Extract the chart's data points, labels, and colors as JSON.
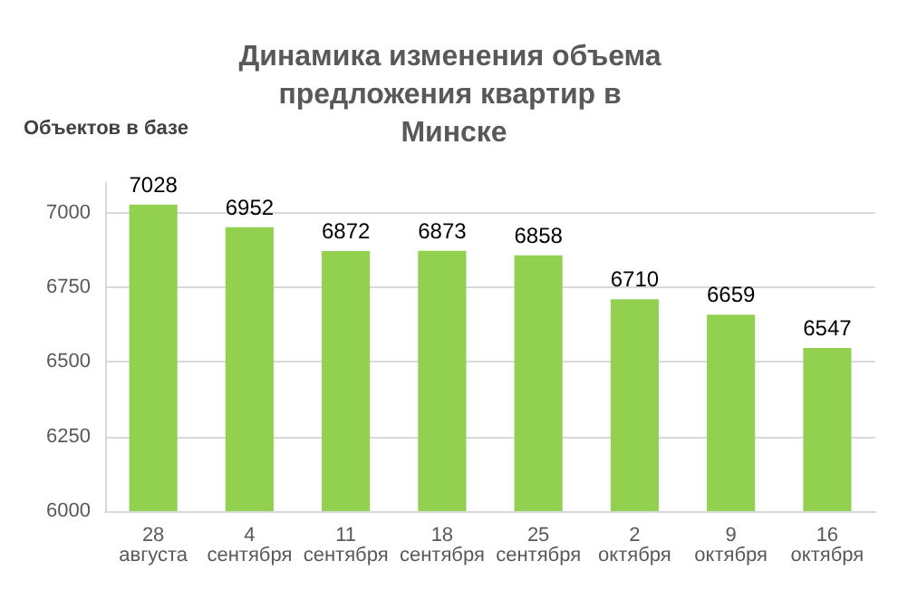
{
  "chart_data": {
    "type": "bar",
    "title": "Динамика изменения объема предложения квартир в Минске",
    "ylabel": "Объектов в базе",
    "categories": [
      "28 августа",
      "4 сентября",
      "11 сентября",
      "18 сентября",
      "25 сентября",
      "2 октября",
      "9 октября",
      "16 октября"
    ],
    "values": [
      7028,
      6952,
      6872,
      6873,
      6858,
      6710,
      6659,
      6547
    ],
    "color": "#92d050",
    "ylim": [
      6000,
      7100
    ],
    "yticks": [
      6000,
      6250,
      6500,
      6750,
      7000
    ],
    "grid": "y",
    "data_labels": true
  }
}
